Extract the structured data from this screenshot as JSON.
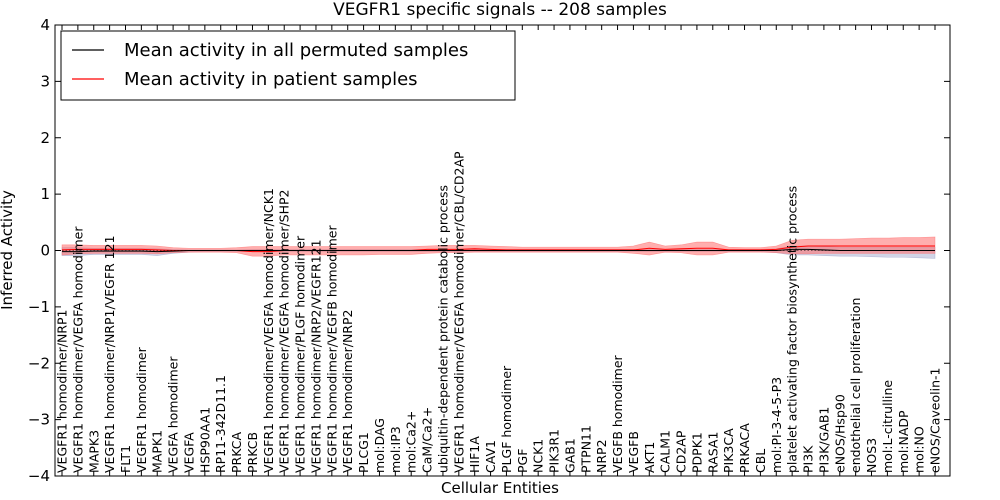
{
  "chart_data": {
    "type": "line",
    "title": "VEGFR1 specific signals -- 208 samples",
    "xlabel": "Cellular Entities",
    "ylabel": "Inferred Activity",
    "ylim": [
      -4,
      4
    ],
    "yticks": [
      "−4",
      "−3",
      "−2",
      "−1",
      "0",
      "1",
      "2",
      "3",
      "4"
    ],
    "yticks_values": [
      -4,
      -3,
      -2,
      -1,
      0,
      1,
      2,
      3,
      4
    ],
    "legend_position": "top-left",
    "grid": false,
    "categories": [
      "VEGFR1 homodimer/NRP1",
      "VEGFR1 homodimer/VEGFA homodimer",
      "MAPK3",
      "VEGFR1 homodimer/NRP1/VEGFR 121",
      "FLT1",
      "VEGFR1 homodimer",
      "MAPK1",
      "VEGFA homodimer",
      "VEGFA",
      "HSP90AA1",
      "RP11-342D11.1",
      "PRKCA",
      "PRKCB",
      "VEGFR1 homodimer/VEGFA homodimer/NCK1",
      "VEGFR1 homodimer/VEGFA homodimer/SHP2",
      "VEGFR1 homodimer/PLGF homodimer",
      "VEGFR1 homodimer/NRP2/VEGFR121",
      "VEGFR1 homodimer/VEGFB homodimer",
      "VEGFR1 homodimer/NRP2",
      "PLCG1",
      "mol:DAG",
      "mol:IP3",
      "mol:Ca2+",
      "CaM/Ca2+",
      "ubiquitin-dependent protein catabolic process",
      "VEGFR1 homodimer/VEGFA homodimer/CBL/CD2AP",
      "HIF1A",
      "CAV1",
      "PLGF homodimer",
      "PGF",
      "NCK1",
      "PIK3R1",
      "GAB1",
      "PTPN11",
      "NRP2",
      "VEGFB homodimer",
      "VEGFB",
      "AKT1",
      "CALM1",
      "CD2AP",
      "PDPK1",
      "RASA1",
      "PIK3CA",
      "PRKACA",
      "CBL",
      "mol:PI-3-4-5-P3",
      "platelet activating factor biosynthetic process",
      "PI3K",
      "PI3K/GAB1",
      "eNOS/Hsp90",
      "endothelial cell proliferation",
      "NOS3",
      "mol:L-citrulline",
      "mol:NADP",
      "mol:NO",
      "eNOS/Caveolin-1"
    ],
    "series": [
      {
        "name": "Mean activity in all permuted samples",
        "color": "#000000",
        "band_color": "#9aa0c8",
        "values": [
          -0.02,
          -0.02,
          -0.01,
          -0.01,
          -0.01,
          -0.01,
          -0.02,
          -0.01,
          0,
          0,
          0,
          0,
          0,
          0,
          0,
          0,
          0,
          0,
          0,
          0,
          0,
          0,
          0,
          0,
          0,
          0,
          0,
          0,
          0,
          0,
          0,
          0,
          0,
          0,
          0,
          0,
          0,
          0,
          0,
          0,
          0,
          0,
          0,
          0,
          0,
          0,
          0.02,
          0.02,
          0.01,
          0,
          0,
          0,
          0,
          0,
          0,
          0
        ],
        "upper": [
          0.05,
          0.05,
          0.04,
          0.04,
          0.04,
          0.04,
          0.03,
          0.02,
          0.01,
          0.01,
          0.01,
          0.01,
          0.02,
          0.02,
          0.02,
          0.02,
          0.02,
          0.02,
          0.02,
          0.02,
          0.02,
          0.02,
          0.02,
          0.02,
          0.02,
          0.02,
          0.02,
          0.02,
          0.02,
          0.02,
          0.02,
          0.02,
          0.02,
          0.02,
          0.02,
          0.02,
          0.02,
          0.02,
          0.02,
          0.02,
          0.02,
          0.02,
          0.02,
          0.02,
          0.02,
          0.03,
          0.08,
          0.08,
          0.07,
          0.06,
          0.06,
          0.06,
          0.06,
          0.06,
          0.06,
          0.06
        ],
        "lower": [
          -0.09,
          -0.09,
          -0.07,
          -0.07,
          -0.07,
          -0.07,
          -0.09,
          -0.05,
          -0.03,
          -0.02,
          -0.02,
          -0.02,
          -0.02,
          -0.02,
          -0.02,
          -0.02,
          -0.02,
          -0.02,
          -0.02,
          -0.02,
          -0.02,
          -0.02,
          -0.02,
          -0.02,
          -0.02,
          -0.02,
          -0.02,
          -0.02,
          -0.02,
          -0.02,
          -0.02,
          -0.02,
          -0.02,
          -0.02,
          -0.02,
          -0.02,
          -0.02,
          -0.02,
          -0.02,
          -0.02,
          -0.02,
          -0.02,
          -0.02,
          -0.02,
          -0.02,
          -0.04,
          -0.08,
          -0.08,
          -0.09,
          -0.1,
          -0.1,
          -0.11,
          -0.12,
          -0.12,
          -0.13,
          -0.14
        ]
      },
      {
        "name": "Mean activity in patient samples",
        "color": "#ff0000",
        "band_color": "#ff6b6b",
        "values": [
          0.01,
          0.02,
          0.02,
          0.02,
          0.02,
          0.02,
          0.01,
          0,
          0,
          0,
          0,
          0,
          -0.02,
          -0.02,
          0,
          0,
          0,
          0,
          0,
          0,
          0,
          0,
          0,
          0.02,
          0.02,
          0.02,
          0.03,
          0.02,
          0.01,
          0.01,
          0.01,
          0.01,
          0.01,
          0.01,
          0.01,
          0.01,
          0.01,
          0.04,
          0.02,
          0.03,
          0.04,
          0.04,
          0.01,
          0.01,
          0.01,
          0.02,
          0.06,
          0.08,
          0.08,
          0.08,
          0.08,
          0.08,
          0.08,
          0.08,
          0.08,
          0.08
        ],
        "upper": [
          0.1,
          0.1,
          0.09,
          0.09,
          0.09,
          0.09,
          0.08,
          0.05,
          0.04,
          0.04,
          0.04,
          0.05,
          0.07,
          0.07,
          0.07,
          0.07,
          0.07,
          0.07,
          0.07,
          0.07,
          0.07,
          0.07,
          0.07,
          0.08,
          0.09,
          0.09,
          0.09,
          0.08,
          0.07,
          0.06,
          0.06,
          0.06,
          0.06,
          0.06,
          0.06,
          0.06,
          0.08,
          0.15,
          0.08,
          0.1,
          0.15,
          0.15,
          0.06,
          0.05,
          0.05,
          0.08,
          0.18,
          0.2,
          0.2,
          0.2,
          0.21,
          0.22,
          0.22,
          0.23,
          0.23,
          0.24
        ],
        "lower": [
          -0.08,
          -0.06,
          -0.05,
          -0.05,
          -0.05,
          -0.05,
          -0.06,
          -0.04,
          -0.03,
          -0.03,
          -0.03,
          -0.04,
          -0.1,
          -0.1,
          -0.08,
          -0.08,
          -0.08,
          -0.08,
          -0.08,
          -0.08,
          -0.07,
          -0.07,
          -0.07,
          -0.05,
          -0.04,
          -0.04,
          -0.03,
          -0.03,
          -0.03,
          -0.03,
          -0.03,
          -0.03,
          -0.03,
          -0.03,
          -0.03,
          -0.03,
          -0.05,
          -0.08,
          -0.03,
          -0.04,
          -0.08,
          -0.08,
          -0.03,
          -0.03,
          -0.03,
          -0.04,
          -0.06,
          -0.06,
          -0.05,
          -0.05,
          -0.05,
          -0.05,
          -0.05,
          -0.05,
          -0.05,
          -0.05
        ]
      }
    ]
  }
}
